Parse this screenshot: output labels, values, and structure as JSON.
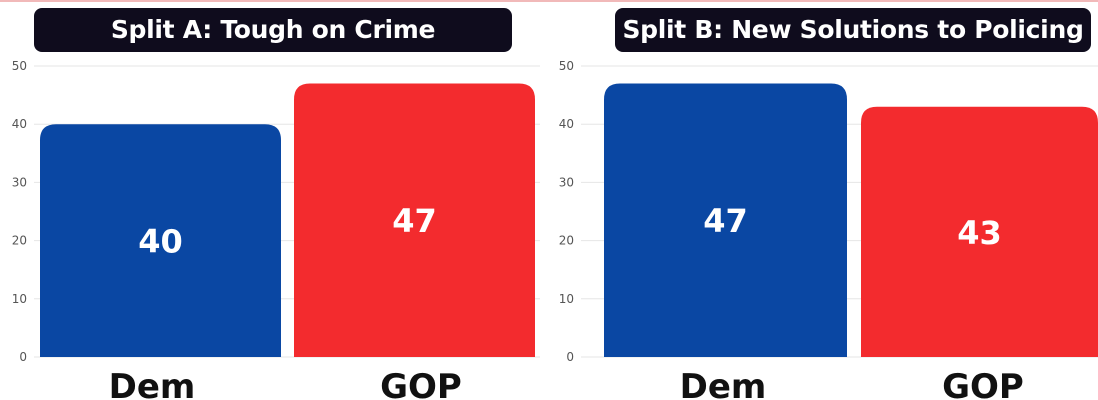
{
  "chart_data": [
    {
      "type": "bar",
      "title": "Split A: Tough on Crime",
      "categories": [
        "Dem",
        "GOP"
      ],
      "values": [
        40,
        47
      ],
      "colors": [
        "#0a47a3",
        "#f32b2e"
      ],
      "ylim": [
        0,
        50
      ],
      "yticks": [
        "0",
        "10",
        "20",
        "30",
        "40",
        "50"
      ],
      "grid": true
    },
    {
      "type": "bar",
      "title": "Split B: New Solutions to Policing",
      "categories": [
        "Dem",
        "GOP"
      ],
      "values": [
        47,
        43
      ],
      "colors": [
        "#0a47a3",
        "#f32b2e"
      ],
      "ylim": [
        0,
        50
      ],
      "yticks": [
        "0",
        "10",
        "20",
        "30",
        "40",
        "50"
      ],
      "grid": true
    }
  ]
}
